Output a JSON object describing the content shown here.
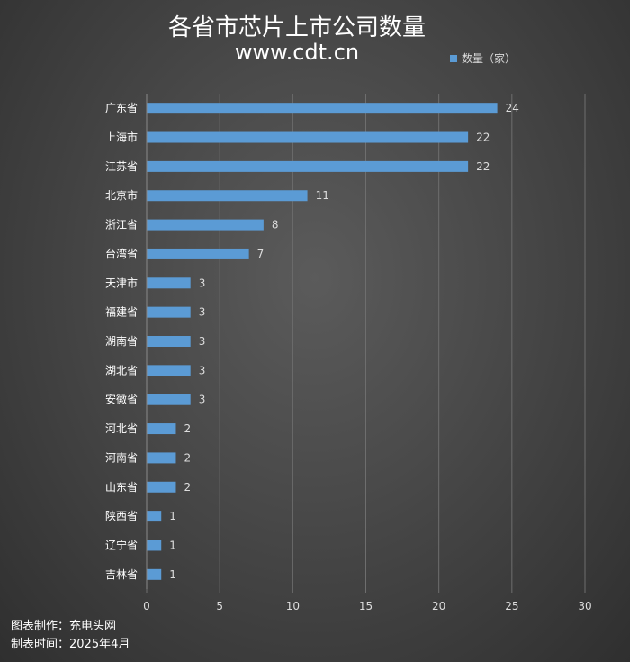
{
  "chart_data": {
    "type": "bar",
    "orientation": "horizontal",
    "title": "各省市芯片上市公司数量",
    "subtitle": "www.cdt.cn",
    "categories": [
      "广东省",
      "上海市",
      "江苏省",
      "北京市",
      "浙江省",
      "台湾省",
      "天津市",
      "福建省",
      "湖南省",
      "湖北省",
      "安徽省",
      "河北省",
      "河南省",
      "山东省",
      "陕西省",
      "辽宁省",
      "吉林省"
    ],
    "series": [
      {
        "name": "数量（家）",
        "values": [
          24,
          22,
          22,
          11,
          8,
          7,
          3,
          3,
          3,
          3,
          3,
          2,
          2,
          2,
          1,
          1,
          1
        ]
      }
    ],
    "xlim": [
      0,
      30
    ],
    "xticks": [
      0,
      5,
      10,
      15,
      20,
      25,
      30
    ],
    "grid": true,
    "legend_position": "top-right",
    "bar_color": "#5b9bd5",
    "data_labels": true
  },
  "credits": {
    "maker": "图表制作：充电头网",
    "date": "制表时间：2025年4月"
  },
  "colors": {
    "background": "#4a4a4a",
    "grid": "#6e6e6e",
    "text": "#ffffff",
    "bar": "#5b9bd5"
  }
}
